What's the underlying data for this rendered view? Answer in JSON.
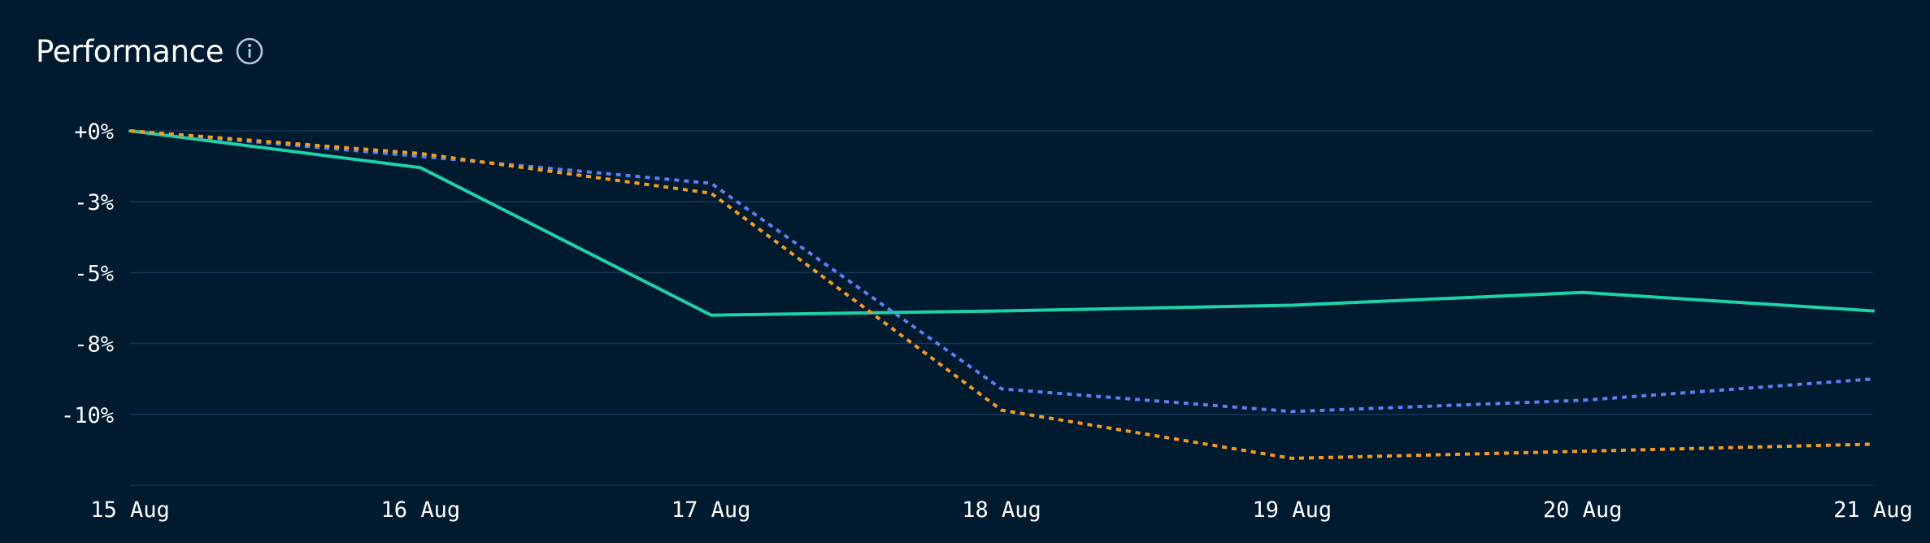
{
  "header": {
    "title": "Performance",
    "info_icon": "info-circle-icon"
  },
  "colors": {
    "background": "#001a30",
    "grid": "#173553",
    "series_1": "#1fd1a8",
    "series_2": "#5b7ff0",
    "series_3": "#f59b1c"
  },
  "chart_data": {
    "type": "line",
    "x": [
      "15 Aug",
      "16 Aug",
      "17 Aug",
      "18 Aug",
      "19 Aug",
      "20 Aug",
      "21 Aug"
    ],
    "y_ticks": [
      "+0%",
      "-3%",
      "-5%",
      "-8%",
      "-10%"
    ],
    "y_tick_values": [
      0,
      -2.5,
      -5,
      -7.5,
      -10
    ],
    "ylim": [
      -12.5,
      0
    ],
    "grid": true,
    "legend": "none",
    "series": [
      {
        "values": [
          0,
          -1.3,
          -6.5,
          -6.35,
          -6.15,
          -5.7,
          -6.35
        ],
        "color": "#1fd1a8",
        "style": "solid"
      },
      {
        "values": [
          0,
          -0.9,
          -1.85,
          -9.1,
          -9.9,
          -9.5,
          -8.75
        ],
        "color": "#5b7ff0",
        "style": "dotted"
      },
      {
        "values": [
          0,
          -0.8,
          -2.2,
          -9.85,
          -11.55,
          -11.3,
          -11.05
        ],
        "color": "#f59b1c",
        "style": "dotted"
      }
    ]
  }
}
